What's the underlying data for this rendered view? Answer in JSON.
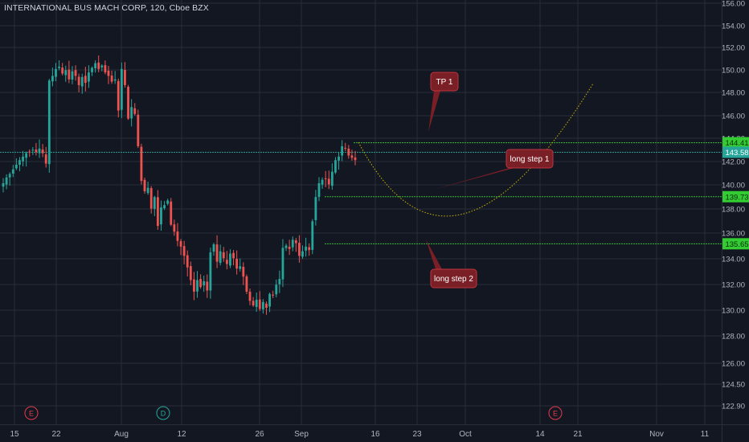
{
  "chart_data": {
    "type": "candlestick",
    "title": "INTERNATIONAL BUS MACH CORP, 120, Cboe BZX",
    "ylim": [
      120.0,
      156.5
    ],
    "y_ticks": [
      "156.00",
      "154.00",
      "152.00",
      "150.00",
      "148.00",
      "146.00",
      "144.00",
      "142.00",
      "140.00",
      "138.00",
      "136.00",
      "134.00",
      "132.00",
      "130.00",
      "128.00",
      "126.00",
      "124.50",
      "122.90"
    ],
    "x_ticks": [
      "15",
      "22",
      "Aug",
      "12",
      "26",
      "Sep",
      "16",
      "23",
      "Oct",
      "14",
      "21",
      "Nov",
      "11"
    ],
    "price_levels": [
      {
        "label": "144.41",
        "value": 144.41,
        "color": "#33cc33"
      },
      {
        "label": "143.58",
        "value": 143.58,
        "color": "#26a69a"
      },
      {
        "label": "139.73",
        "value": 139.73,
        "color": "#33cc33"
      },
      {
        "label": "135.65",
        "value": 135.65,
        "color": "#33cc33"
      }
    ],
    "annotations": [
      {
        "text": "TP 1"
      },
      {
        "text": "long step 1"
      },
      {
        "text": "long step 2"
      }
    ],
    "event_markers": [
      {
        "text": "E",
        "color": "#e03a4b"
      },
      {
        "text": "D",
        "color": "#26a69a"
      },
      {
        "text": "E",
        "color": "#e03a4b"
      }
    ],
    "colors": {
      "background": "#131722",
      "up": "#26a69a",
      "down": "#ef5350",
      "grid": "#2a2e39",
      "axis_text": "#b2b5be",
      "projection": "#c8b400",
      "callout_bg": "#7a1f25",
      "callout_border": "#c0343e"
    },
    "closes": [
      140.9,
      141.4,
      141.7,
      142.1,
      142.5,
      142.9,
      143.2,
      143.5,
      143.6,
      143.8,
      143.6,
      143.9,
      143.5,
      142.6,
      149.8,
      150.2,
      150.8,
      151.0,
      150.4,
      150.7,
      149.9,
      150.6,
      150.2,
      149.4,
      150.1,
      149.6,
      150.5,
      150.9,
      151.3,
      150.8,
      151.1,
      150.5,
      150.2,
      149.7,
      149.9,
      147.2,
      150.8,
      149.4,
      146.5,
      147.5,
      146.9,
      144.1,
      141.1,
      140.2,
      140.5,
      138.7,
      139.7,
      137.2,
      138.8,
      139.0,
      139.4,
      137.3,
      136.7,
      135.9,
      135.4,
      134.6,
      133.6,
      132.5,
      131.5,
      132.5,
      131.9,
      132.4,
      131.6,
      134.9,
      135.6,
      134.1,
      135.0,
      134.4,
      133.9,
      134.8,
      134.4,
      133.5,
      133.7,
      132.8,
      131.5,
      130.7,
      130.3,
      130.8,
      130.0,
      130.6,
      130.1,
      131.3,
      131.2,
      132.1,
      132.6,
      135.3,
      135.5,
      135.2,
      136.0,
      135.7,
      134.6,
      135.0,
      135.4,
      135.1,
      137.6,
      139.7,
      140.9,
      141.2,
      141.3,
      140.8,
      141.9,
      142.9,
      143.2,
      144.1,
      143.9,
      143.3,
      143.1,
      142.9
    ]
  }
}
